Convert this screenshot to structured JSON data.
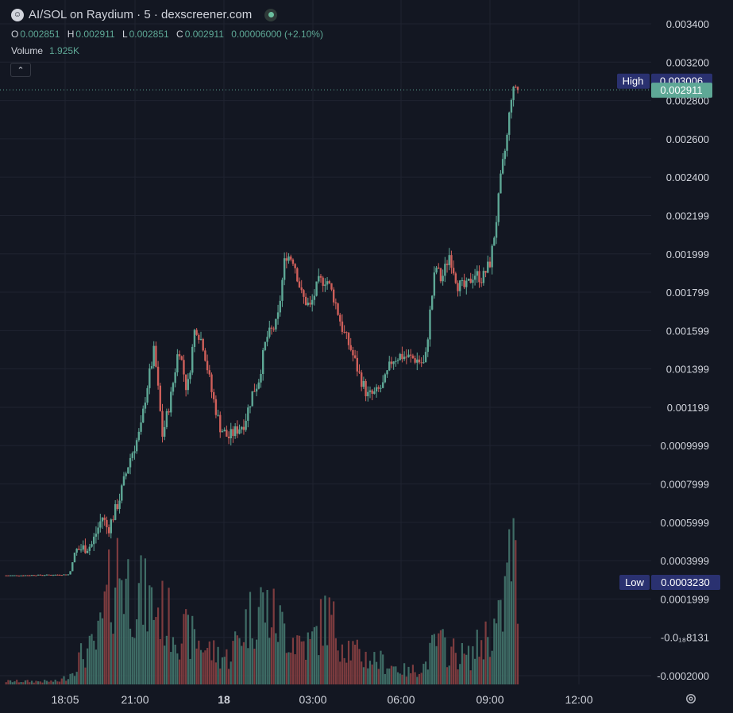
{
  "header": {
    "title": "AI/SOL on Raydium · 5 · dexscreener.com",
    "ohlc": {
      "o_key": "O",
      "o": "0.002851",
      "h_key": "H",
      "h": "0.002911",
      "l_key": "L",
      "l": "0.002851",
      "c_key": "C",
      "c": "0.002911",
      "change": "0.00006000 (+2.10%)"
    },
    "volume_label": "Volume",
    "volume_value": "1.925K"
  },
  "colors": {
    "up": "#5ea896",
    "down": "#cf5f5a",
    "vol_up": "#3f6d66",
    "vol_down": "#7d3c3f",
    "background": "#131722",
    "badge": "#2a3170"
  },
  "chart_data": {
    "type": "candlestick",
    "y_ticks": [
      "0.003400",
      "0.003200",
      "0.002800",
      "0.002600",
      "0.002400",
      "0.002199",
      "0.001999",
      "0.001799",
      "0.001599",
      "0.001399",
      "0.001199",
      "0.0009999",
      "0.0007999",
      "0.0005999",
      "0.0003999",
      "0.0001999",
      "-0.0₁₈8131",
      "-0.0002000"
    ],
    "x_ticks": [
      "18:05",
      "21:00",
      "18",
      "03:00",
      "06:00",
      "09:00",
      "12:00"
    ],
    "ylim": [
      -0.0002,
      0.0034
    ],
    "high_label": {
      "text": "High",
      "value": "0.003006"
    },
    "low_label": {
      "text": "Low",
      "value": "0.0003230"
    },
    "last_price": "0.002911",
    "price_path": [
      [
        0,
        0.000323
      ],
      [
        0.03,
        0.000323
      ],
      [
        0.06,
        0.000325
      ],
      [
        0.09,
        0.000326
      ],
      [
        0.12,
        0.000328
      ],
      [
        0.13,
        0.00045
      ],
      [
        0.16,
        0.00048
      ],
      [
        0.18,
        0.00063
      ],
      [
        0.19,
        0.00056
      ],
      [
        0.21,
        0.00071
      ],
      [
        0.23,
        0.00093
      ],
      [
        0.25,
        0.00108
      ],
      [
        0.26,
        0.00128
      ],
      [
        0.275,
        0.0015
      ],
      [
        0.29,
        0.00105
      ],
      [
        0.305,
        0.00125
      ],
      [
        0.32,
        0.00152
      ],
      [
        0.335,
        0.00128
      ],
      [
        0.35,
        0.00163
      ],
      [
        0.365,
        0.00152
      ],
      [
        0.38,
        0.00128
      ],
      [
        0.395,
        0.0011
      ],
      [
        0.41,
        0.00104
      ],
      [
        0.425,
        0.00108
      ],
      [
        0.44,
        0.00112
      ],
      [
        0.455,
        0.00128
      ],
      [
        0.465,
        0.00133
      ],
      [
        0.48,
        0.00156
      ],
      [
        0.5,
        0.00164
      ],
      [
        0.515,
        0.002
      ],
      [
        0.53,
        0.00197
      ],
      [
        0.545,
        0.00178
      ],
      [
        0.56,
        0.00172
      ],
      [
        0.575,
        0.00185
      ],
      [
        0.59,
        0.00187
      ],
      [
        0.605,
        0.00176
      ],
      [
        0.62,
        0.0016
      ],
      [
        0.635,
        0.0015
      ],
      [
        0.65,
        0.00137
      ],
      [
        0.665,
        0.00126
      ],
      [
        0.68,
        0.00127
      ],
      [
        0.695,
        0.00132
      ],
      [
        0.71,
        0.00145
      ],
      [
        0.725,
        0.00147
      ],
      [
        0.74,
        0.00146
      ],
      [
        0.755,
        0.00145
      ],
      [
        0.77,
        0.00142
      ],
      [
        0.78,
        0.00171
      ],
      [
        0.79,
        0.00194
      ],
      [
        0.8,
        0.00186
      ],
      [
        0.815,
        0.002
      ],
      [
        0.83,
        0.00184
      ],
      [
        0.845,
        0.00182
      ],
      [
        0.86,
        0.0019
      ],
      [
        0.875,
        0.00187
      ],
      [
        0.89,
        0.00196
      ],
      [
        0.9,
        0.00216
      ],
      [
        0.91,
        0.00242
      ],
      [
        0.92,
        0.0026
      ],
      [
        0.93,
        0.00288
      ],
      [
        0.935,
        0.00296
      ],
      [
        0.94,
        0.00291
      ]
    ],
    "volume_path": [
      [
        0.0,
        0.02
      ],
      [
        0.1,
        0.02
      ],
      [
        0.12,
        0.06
      ],
      [
        0.14,
        0.18
      ],
      [
        0.17,
        0.25
      ],
      [
        0.19,
        0.55
      ],
      [
        0.21,
        0.78
      ],
      [
        0.23,
        0.62
      ],
      [
        0.26,
        0.54
      ],
      [
        0.29,
        0.46
      ],
      [
        0.32,
        0.34
      ],
      [
        0.35,
        0.29
      ],
      [
        0.38,
        0.21
      ],
      [
        0.41,
        0.17
      ],
      [
        0.44,
        0.38
      ],
      [
        0.47,
        0.52
      ],
      [
        0.5,
        0.4
      ],
      [
        0.53,
        0.3
      ],
      [
        0.56,
        0.25
      ],
      [
        0.59,
        0.45
      ],
      [
        0.62,
        0.28
      ],
      [
        0.65,
        0.18
      ],
      [
        0.68,
        0.16
      ],
      [
        0.71,
        0.12
      ],
      [
        0.74,
        0.08
      ],
      [
        0.77,
        0.12
      ],
      [
        0.79,
        0.27
      ],
      [
        0.82,
        0.21
      ],
      [
        0.85,
        0.17
      ],
      [
        0.88,
        0.3
      ],
      [
        0.91,
        0.4
      ],
      [
        0.93,
        0.92
      ],
      [
        0.94,
        0.54
      ]
    ]
  }
}
